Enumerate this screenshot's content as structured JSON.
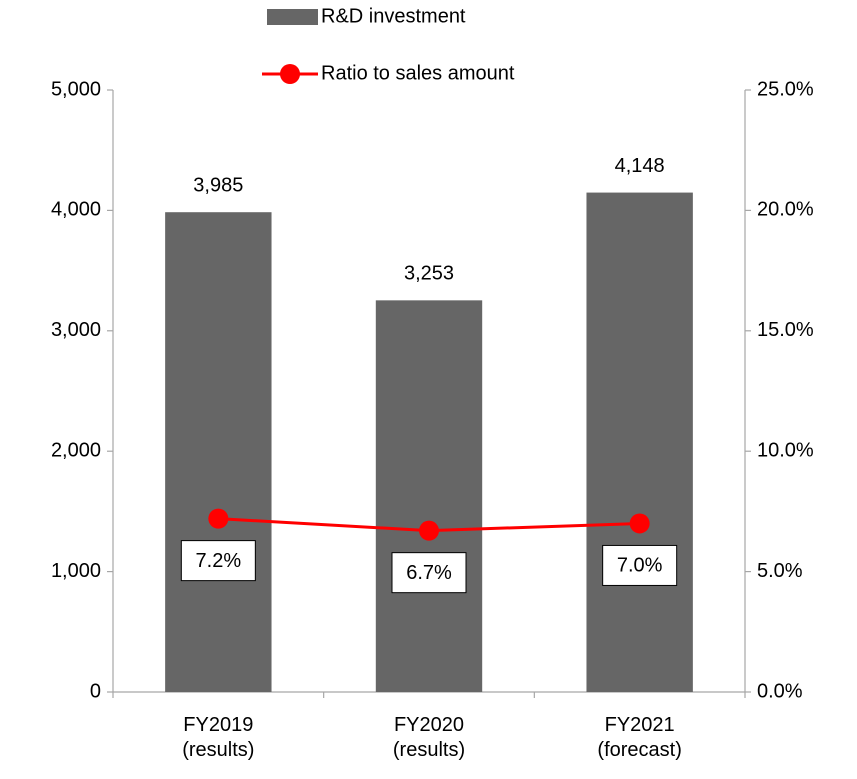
{
  "chart_data": {
    "type": "bar_line",
    "categories": [
      "FY2019\n(results)",
      "FY2020\n(results)",
      "FY2021\n(forecast)"
    ],
    "series": [
      {
        "name": "R&D investment",
        "type": "bar",
        "color": "#666666",
        "values": [
          3985,
          3253,
          4148
        ],
        "value_labels": [
          "3,985",
          "3,253",
          "4,148"
        ]
      },
      {
        "name": "Ratio to sales amount",
        "type": "line",
        "axis": "y2",
        "color": "#ff0000",
        "values": [
          7.2,
          6.7,
          7.0
        ],
        "value_labels": [
          "7.2%",
          "6.7%",
          "7.0%"
        ]
      }
    ],
    "ylim": [
      0,
      5000
    ],
    "yticks": [
      0,
      {
        "value": 1000,
        "label": "1,000"
      },
      {
        "value": 2000,
        "label": "2,000"
      },
      {
        "value": 3000,
        "label": "3,000"
      },
      {
        "value": 4000,
        "label": "4,000"
      },
      {
        "value": 5000,
        "label": "5,000"
      }
    ],
    "y2lim": [
      0,
      25
    ],
    "y2ticks": [
      {
        "value": 0,
        "label": "0.0%"
      },
      {
        "value": 5,
        "label": "5.0%"
      },
      {
        "value": 10,
        "label": "10.0%"
      },
      {
        "value": 15,
        "label": "15.0%"
      },
      {
        "value": 20,
        "label": "20.0%"
      },
      {
        "value": 25,
        "label": "25.0%"
      }
    ],
    "legend": "top"
  }
}
